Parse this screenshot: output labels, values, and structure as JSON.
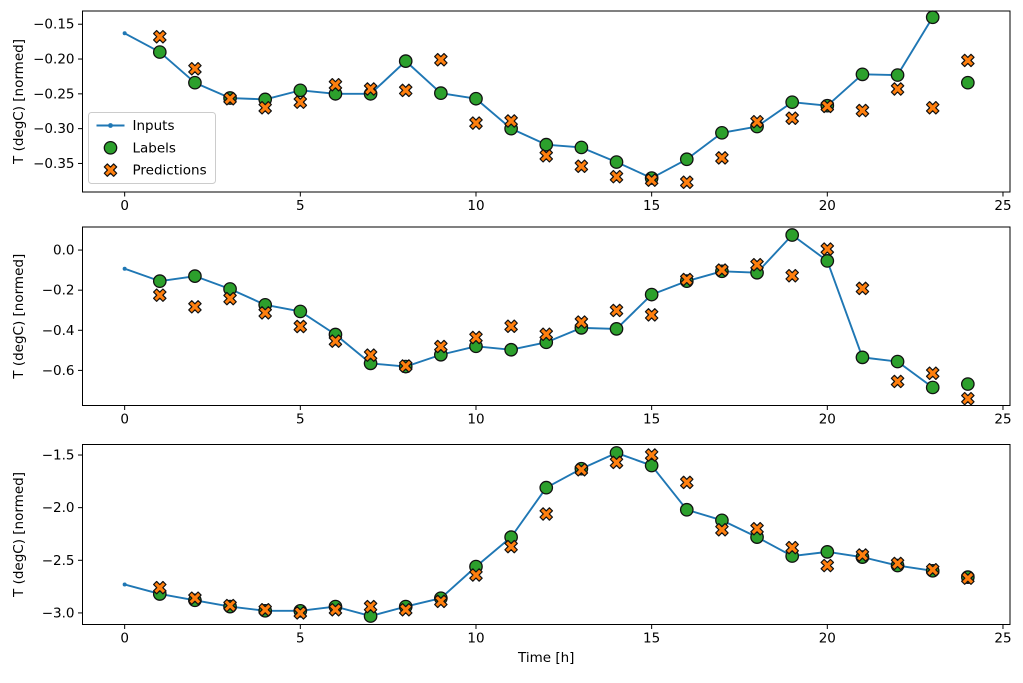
{
  "figure": {
    "xlabel": "Time [h]",
    "ylabel": "T (degC) [normed]",
    "legend": {
      "items": [
        {
          "label": "Inputs",
          "marker": "line-dot",
          "color": "#1f77b4"
        },
        {
          "label": "Labels",
          "marker": "circle",
          "color": "#2ca02c"
        },
        {
          "label": "Predictions",
          "marker": "x-cross",
          "color": "#ff7f0e"
        }
      ]
    },
    "colors": {
      "inputs_line": "#1f77b4",
      "labels_fill": "#2ca02c",
      "predictions_fill": "#ff7f0e",
      "marker_edge": "#111111",
      "axis": "#000000",
      "background": "#ffffff"
    }
  },
  "chart_data": [
    {
      "type": "line+scatter",
      "subplot": 1,
      "ylabel": "T (degC) [normed]",
      "xlabel": "",
      "legend": true,
      "grid": false,
      "xlim": [
        -1.2,
        25.2
      ],
      "ylim": [
        -0.391,
        -0.131
      ],
      "xticks": [
        0,
        5,
        10,
        15,
        20,
        25
      ],
      "xtick_labels": [
        "0",
        "5",
        "10",
        "15",
        "20",
        "25"
      ],
      "yticks": [
        -0.15,
        -0.2,
        -0.25,
        -0.3,
        -0.35
      ],
      "ytick_labels": [
        "−0.15",
        "−0.20",
        "−0.25",
        "−0.30",
        "−0.35"
      ],
      "series": [
        {
          "name": "Inputs",
          "role": "inputs",
          "x_start": 0,
          "y": [
            -0.163,
            -0.19,
            -0.234,
            -0.256,
            -0.258,
            -0.245,
            -0.25,
            -0.25,
            -0.203,
            -0.249,
            -0.257,
            -0.3,
            -0.323,
            -0.327,
            -0.348,
            -0.371,
            -0.344,
            -0.306,
            -0.297,
            -0.262,
            -0.267,
            -0.222,
            -0.223,
            -0.14
          ]
        },
        {
          "name": "Labels",
          "role": "labels",
          "x_start": 1,
          "y": [
            -0.19,
            -0.234,
            -0.256,
            -0.258,
            -0.245,
            -0.25,
            -0.25,
            -0.203,
            -0.249,
            -0.257,
            -0.3,
            -0.323,
            -0.327,
            -0.348,
            -0.371,
            -0.344,
            -0.306,
            -0.297,
            -0.262,
            -0.267,
            -0.222,
            -0.223,
            -0.14,
            -0.234
          ]
        },
        {
          "name": "Predictions",
          "role": "predictions",
          "x_start": 1,
          "y": [
            -0.168,
            -0.214,
            -0.257,
            -0.27,
            -0.262,
            -0.237,
            -0.243,
            -0.245,
            -0.201,
            -0.292,
            -0.289,
            -0.339,
            -0.354,
            -0.369,
            -0.374,
            -0.377,
            -0.342,
            -0.29,
            -0.285,
            -0.268,
            -0.274,
            -0.243,
            -0.27,
            -0.202
          ]
        }
      ]
    },
    {
      "type": "line+scatter",
      "subplot": 2,
      "ylabel": "T (degC) [normed]",
      "xlabel": "",
      "legend": false,
      "grid": false,
      "xlim": [
        -1.2,
        25.2
      ],
      "ylim": [
        -0.775,
        0.115
      ],
      "xticks": [
        0,
        5,
        10,
        15,
        20,
        25
      ],
      "xtick_labels": [
        "0",
        "5",
        "10",
        "15",
        "20",
        "25"
      ],
      "yticks": [
        0.0,
        -0.2,
        -0.4,
        -0.6
      ],
      "ytick_labels": [
        "0.0",
        "−0.2",
        "−0.4",
        "−0.6"
      ],
      "series": [
        {
          "name": "Inputs",
          "role": "inputs",
          "x_start": 0,
          "y": [
            -0.093,
            -0.155,
            -0.13,
            -0.194,
            -0.273,
            -0.306,
            -0.421,
            -0.565,
            -0.581,
            -0.522,
            -0.48,
            -0.497,
            -0.46,
            -0.388,
            -0.393,
            -0.222,
            -0.155,
            -0.106,
            -0.113,
            0.075,
            -0.054,
            -0.535,
            -0.556,
            -0.685
          ]
        },
        {
          "name": "Labels",
          "role": "labels",
          "x_start": 1,
          "y": [
            -0.155,
            -0.13,
            -0.194,
            -0.273,
            -0.306,
            -0.421,
            -0.565,
            -0.581,
            -0.522,
            -0.48,
            -0.497,
            -0.46,
            -0.388,
            -0.393,
            -0.222,
            -0.155,
            -0.106,
            -0.113,
            0.075,
            -0.054,
            -0.535,
            -0.556,
            -0.685,
            -0.668
          ]
        },
        {
          "name": "Predictions",
          "role": "predictions",
          "x_start": 1,
          "y": [
            -0.225,
            -0.283,
            -0.242,
            -0.313,
            -0.381,
            -0.454,
            -0.524,
            -0.578,
            -0.481,
            -0.436,
            -0.38,
            -0.42,
            -0.359,
            -0.301,
            -0.323,
            -0.147,
            -0.1,
            -0.073,
            -0.128,
            0.005,
            -0.191,
            -0.655,
            -0.614,
            -0.741
          ]
        }
      ]
    },
    {
      "type": "line+scatter",
      "subplot": 3,
      "ylabel": "T (degC) [normed]",
      "xlabel": "Time [h]",
      "legend": false,
      "grid": false,
      "xlim": [
        -1.2,
        25.2
      ],
      "ylim": [
        -3.11,
        -1.4
      ],
      "xticks": [
        0,
        5,
        10,
        15,
        20,
        25
      ],
      "xtick_labels": [
        "0",
        "5",
        "10",
        "15",
        "20",
        "25"
      ],
      "yticks": [
        -1.5,
        -2.0,
        -2.5,
        -3.0
      ],
      "ytick_labels": [
        "−1.5",
        "−2.0",
        "−2.5",
        "−3.0"
      ],
      "series": [
        {
          "name": "Inputs",
          "role": "inputs",
          "x_start": 0,
          "y": [
            -2.73,
            -2.82,
            -2.88,
            -2.94,
            -2.98,
            -2.98,
            -2.94,
            -3.03,
            -2.94,
            -2.86,
            -2.56,
            -2.28,
            -1.81,
            -1.63,
            -1.48,
            -1.6,
            -2.02,
            -2.12,
            -2.28,
            -2.46,
            -2.42,
            -2.47,
            -2.55,
            -2.6
          ]
        },
        {
          "name": "Labels",
          "role": "labels",
          "x_start": 1,
          "y": [
            -2.82,
            -2.88,
            -2.94,
            -2.98,
            -2.98,
            -2.94,
            -3.03,
            -2.94,
            -2.86,
            -2.56,
            -2.28,
            -1.81,
            -1.63,
            -1.48,
            -1.6,
            -2.02,
            -2.12,
            -2.28,
            -2.46,
            -2.42,
            -2.47,
            -2.55,
            -2.6,
            -2.66
          ]
        },
        {
          "name": "Predictions",
          "role": "predictions",
          "x_start": 1,
          "y": [
            -2.76,
            -2.86,
            -2.93,
            -2.97,
            -3.0,
            -2.97,
            -2.94,
            -2.97,
            -2.89,
            -2.64,
            -2.37,
            -2.06,
            -1.64,
            -1.57,
            -1.5,
            -1.76,
            -2.21,
            -2.2,
            -2.38,
            -2.55,
            -2.45,
            -2.53,
            -2.59,
            -2.67
          ]
        }
      ]
    }
  ]
}
